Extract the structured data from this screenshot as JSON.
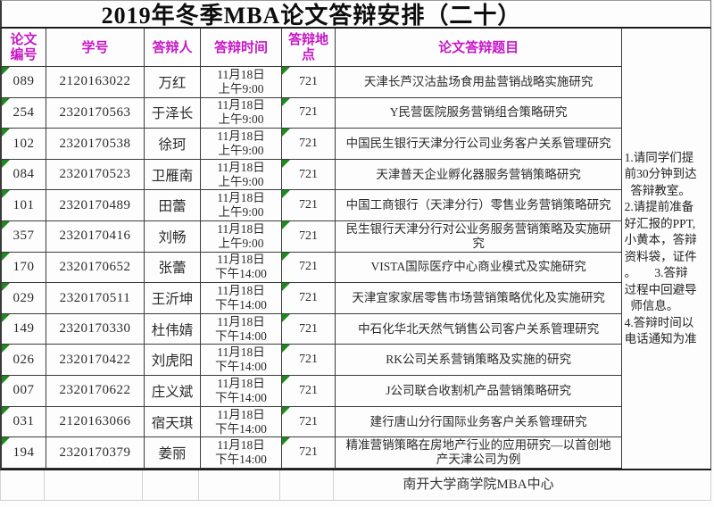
{
  "document": {
    "title": "2019年冬季MBA论文答辩安排（二十）",
    "footer": "南开大学商学院MBA中心"
  },
  "colors": {
    "header_text": "#c817c8",
    "error_triangle": "#1e8a1e",
    "title_text": "#0d0d0d",
    "grid_border": "#3c3c3c"
  },
  "icons": {
    "cell_corner_marker": "excel-error-triangle"
  },
  "table": {
    "headers": [
      "论文编号",
      "学号",
      "答辩人",
      "答辩时间",
      "答辩地点",
      "论文答辩题目"
    ],
    "rows": [
      {
        "id": "089",
        "student_no": "2120163022",
        "defender": "万红",
        "date": "11月18日",
        "time": "上午9:00",
        "room": "721",
        "title": "天津长芦汉沽盐场食用盐营销战略实施研究"
      },
      {
        "id": "254",
        "student_no": "2320170563",
        "defender": "于泽长",
        "date": "11月18日",
        "time": "上午9:00",
        "room": "721",
        "title": "Y民营医院服务营销组合策略研究"
      },
      {
        "id": "102",
        "student_no": "2320170538",
        "defender": "徐珂",
        "date": "11月18日",
        "time": "上午9:00",
        "room": "721",
        "title": "中国民生银行天津分行公司业务客户关系管理研究"
      },
      {
        "id": "084",
        "student_no": "2320170523",
        "defender": "卫雁南",
        "date": "11月18日",
        "time": "上午9:00",
        "room": "721",
        "title": "天津普天企业孵化器服务营销策略研究"
      },
      {
        "id": "101",
        "student_no": "2320170489",
        "defender": "田蕾",
        "date": "11月18日",
        "time": "上午9:00",
        "room": "721",
        "title": "中国工商银行（天津分行）零售业务营销策略研究"
      },
      {
        "id": "357",
        "student_no": "2320170416",
        "defender": "刘畅",
        "date": "11月18日",
        "time": "上午9:00",
        "room": "721",
        "title": "民生银行天津分行对公业务服务营销策略及实施研究"
      },
      {
        "id": "170",
        "student_no": "2320170652",
        "defender": "张蕾",
        "date": "11月18日",
        "time": "下午14:00",
        "room": "721",
        "title": "VISTA国际医疗中心商业模式及实施研究"
      },
      {
        "id": "029",
        "student_no": "2320170511",
        "defender": "王沂坤",
        "date": "11月18日",
        "time": "下午14:00",
        "room": "721",
        "title": "天津宜家家居零售市场营销策略优化及实施研究"
      },
      {
        "id": "149",
        "student_no": "2320170330",
        "defender": "杜伟婧",
        "date": "11月18日",
        "time": "下午14:00",
        "room": "721",
        "title": "中石化华北天然气销售公司客户关系管理研究"
      },
      {
        "id": "026",
        "student_no": "2320170422",
        "defender": "刘虎阳",
        "date": "11月18日",
        "time": "下午14:00",
        "room": "721",
        "title": "RK公司关系营销策略及实施的研究"
      },
      {
        "id": "007",
        "student_no": "2320170622",
        "defender": "庄义斌",
        "date": "11月18日",
        "time": "下午14:00",
        "room": "721",
        "title": "J公司联合收割机产品营销策略研究"
      },
      {
        "id": "031",
        "student_no": "2120163066",
        "defender": "宿天琪",
        "date": "11月18日",
        "time": "下午14:00",
        "room": "721",
        "title": "建行唐山分行国际业务客户关系管理研究"
      },
      {
        "id": "194",
        "student_no": "2320170379",
        "defender": "姜丽",
        "date": "11月18日",
        "time": "下午14:00",
        "room": "721",
        "title": "精准营销策略在房地产行业的应用研究—以首创地产天津公司为例"
      }
    ]
  },
  "notes": "1.请同学们提\n前30分钟到达\n  答辩教室。\n2.请提前准备\n好汇报的PPT,\n小黄本，答辩\n资料袋，证件\n。      3.答辩\n过程中回避导\n  师信息。\n4.答辩时间以\n电话通知为准"
}
